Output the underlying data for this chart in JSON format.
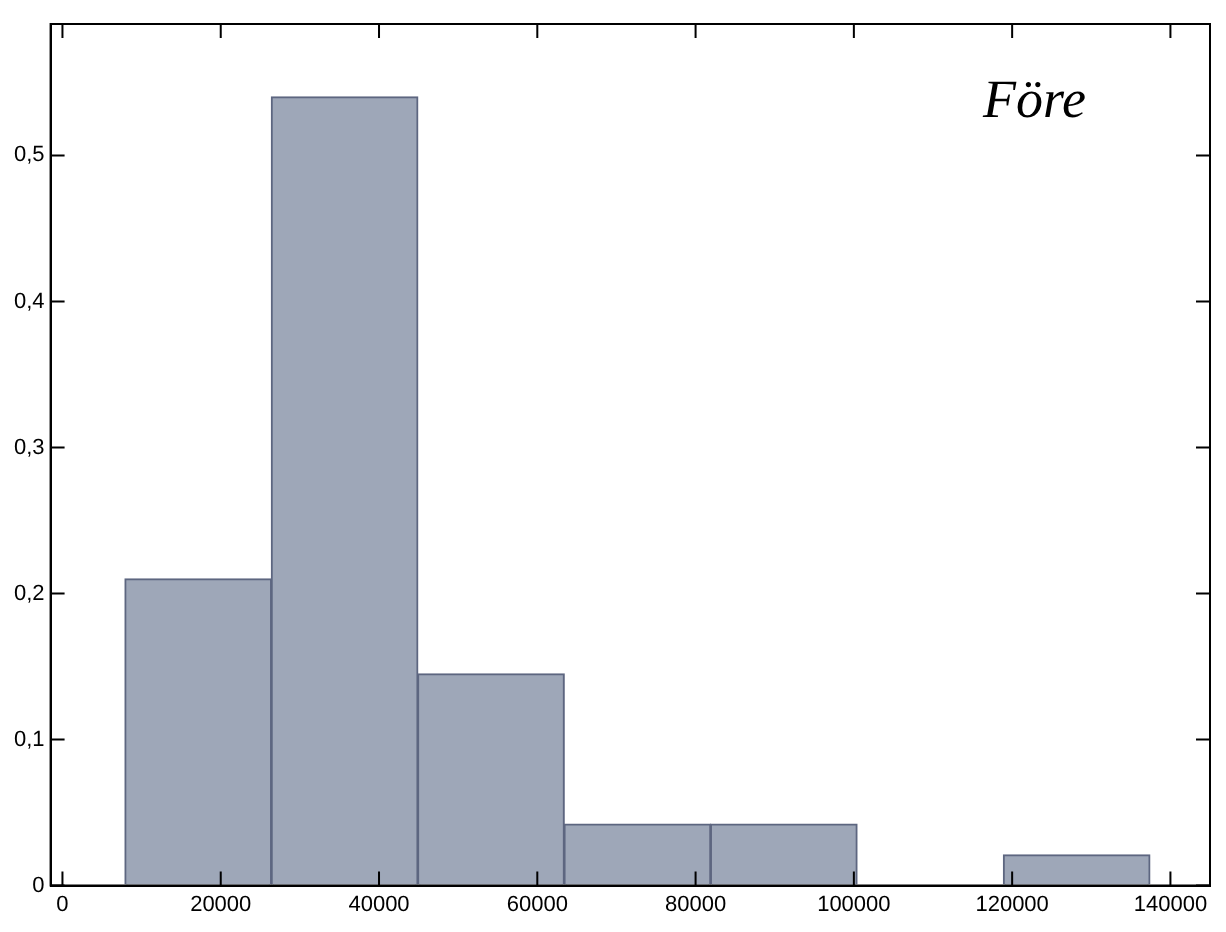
{
  "chart_data": {
    "type": "histogram",
    "title": "Före",
    "bins": [
      7900,
      26400,
      44900,
      63400,
      81900,
      100400,
      118900,
      137400
    ],
    "values": [
      0.21,
      0.54,
      0.145,
      0.042,
      0.042,
      0,
      0.021
    ],
    "color": "#9ea7b8",
    "xlim": [
      -1500,
      145000
    ],
    "xticks": [
      0,
      20000,
      40000,
      60000,
      80000,
      100000,
      120000,
      140000
    ],
    "ylim": [
      0,
      0.59
    ],
    "yticks": [
      0,
      {
        "value": 0.1,
        "label": "0,1"
      },
      {
        "value": 0.2,
        "label": "0,2"
      },
      {
        "value": 0.3,
        "label": "0,3"
      },
      {
        "value": 0.4,
        "label": "0,4"
      },
      {
        "value": 0.5,
        "label": "0,5"
      }
    ],
    "grid": false,
    "legend": false
  }
}
